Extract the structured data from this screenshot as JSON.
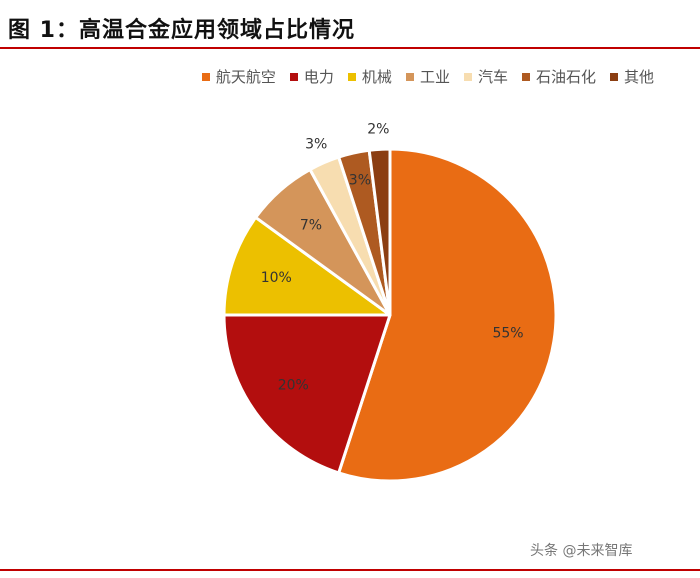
{
  "page": {
    "title": "图 1：高温合金应用领域占比情况",
    "watermark": "头条 @未来智库"
  },
  "chart_data": {
    "type": "pie",
    "title": "图 1：高温合金应用领域占比情况",
    "legend_position": "top",
    "slices": [
      {
        "name": "航天航空",
        "value": 55,
        "label": "55%",
        "color": "#e96c14"
      },
      {
        "name": "电力",
        "value": 20,
        "label": "20%",
        "color": "#b30e0e"
      },
      {
        "name": "机械",
        "value": 10,
        "label": "10%",
        "color": "#ecc000"
      },
      {
        "name": "工业",
        "value": 7,
        "label": "7%",
        "color": "#d4955a"
      },
      {
        "name": "汽车",
        "value": 3,
        "label": "3%",
        "color": "#f7ddb0"
      },
      {
        "name": "石油石化",
        "value": 3,
        "label": "3%",
        "color": "#ae5a21"
      },
      {
        "name": "其他",
        "value": 2,
        "label": "2%",
        "color": "#8b3e12"
      }
    ]
  }
}
